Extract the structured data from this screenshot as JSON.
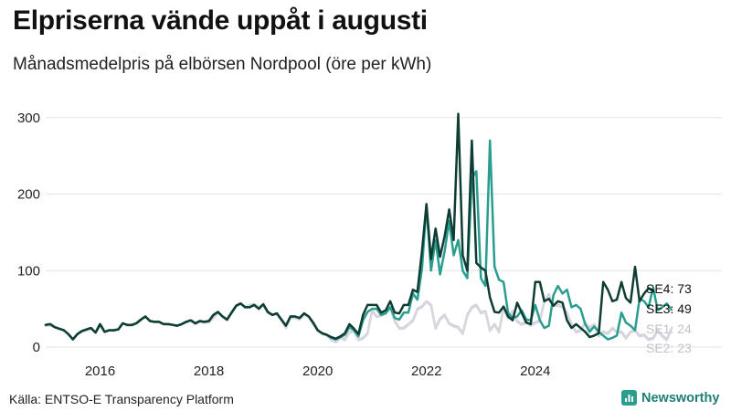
{
  "header": {
    "title": "Elpriserna vände uppåt i augusti",
    "subtitle": "Månadsmedelpris på elbörsen Nordpool (öre per kWh)"
  },
  "footer": {
    "source": "Källa: ENTSO-E Transparency Platform",
    "brand": "Newsworthy"
  },
  "chart_data": {
    "type": "line",
    "title": "Elpriserna vände uppåt i augusti",
    "subtitle": "Månadsmedelpris på elbörsen Nordpool (öre per kWh)",
    "xlabel": "",
    "ylabel": "öre per kWh",
    "x_start": "2015-01",
    "x_end": "2025-08",
    "xlim": [
      2015.0,
      2025.75
    ],
    "ylim": [
      0,
      320
    ],
    "yticks": [
      0,
      100,
      200,
      300
    ],
    "xticks": [
      2016,
      2018,
      2020,
      2022,
      2024
    ],
    "xtick_labels": [
      "2016",
      "2018",
      "2020",
      "2022",
      "2024"
    ],
    "grid": true,
    "series": [
      {
        "name": "SE2",
        "label": "SE2: 23",
        "color": "#c9c6d0",
        "last": 23,
        "values": [
          28,
          28,
          26,
          24,
          22,
          17,
          10,
          17,
          20,
          22,
          24,
          19,
          28,
          20,
          22,
          22,
          23,
          31,
          28,
          28,
          31,
          35,
          40,
          34,
          33,
          33,
          30,
          30,
          29,
          28,
          30,
          33,
          35,
          30,
          33,
          32,
          32,
          38,
          45,
          40,
          35,
          44,
          53,
          57,
          52,
          55,
          56,
          53,
          55,
          44,
          42,
          43,
          35,
          25,
          38,
          38,
          36,
          42,
          40,
          30,
          22,
          18,
          16,
          10,
          7,
          13,
          10,
          20,
          21,
          10,
          12,
          18,
          48,
          40,
          42,
          45,
          52,
          34,
          25,
          25,
          30,
          35,
          50,
          53,
          60,
          55,
          25,
          37,
          42,
          31,
          28,
          26,
          18,
          42,
          52,
          55,
          45,
          47,
          22,
          30,
          20,
          52,
          38,
          47,
          34,
          30,
          33,
          29,
          32,
          35,
          60,
          69,
          55,
          55,
          53,
          45,
          30,
          20,
          22,
          32,
          25,
          30,
          15,
          20,
          18,
          25,
          20,
          20,
          12,
          20,
          22,
          15,
          16,
          10,
          12,
          22,
          15,
          10,
          23
        ]
      },
      {
        "name": "SE1",
        "label": "SE1: 24",
        "color": "#d8d6de",
        "last": 24,
        "values": [
          28,
          28,
          26,
          24,
          22,
          17,
          10,
          17,
          20,
          22,
          24,
          19,
          28,
          20,
          22,
          22,
          23,
          31,
          28,
          28,
          31,
          35,
          40,
          34,
          33,
          33,
          30,
          30,
          29,
          28,
          30,
          33,
          35,
          30,
          33,
          32,
          32,
          38,
          45,
          40,
          35,
          44,
          53,
          57,
          52,
          55,
          56,
          53,
          55,
          44,
          42,
          43,
          35,
          25,
          38,
          38,
          36,
          42,
          40,
          30,
          21,
          17,
          15,
          9,
          6,
          12,
          9,
          19,
          20,
          9,
          11,
          17,
          47,
          39,
          41,
          44,
          51,
          33,
          24,
          24,
          29,
          34,
          49,
          52,
          59,
          54,
          24,
          36,
          41,
          30,
          27,
          25,
          17,
          41,
          51,
          54,
          44,
          46,
          21,
          29,
          19,
          51,
          37,
          46,
          33,
          29,
          32,
          28,
          31,
          34,
          59,
          68,
          54,
          54,
          52,
          44,
          29,
          19,
          21,
          31,
          24,
          29,
          14,
          19,
          17,
          24,
          19,
          19,
          11,
          19,
          21,
          14,
          15,
          9,
          11,
          21,
          14,
          9,
          24
        ]
      },
      {
        "name": "SE3",
        "label": "SE3: 49",
        "color": "#2a9d8f",
        "last": 49,
        "values": [
          29,
          30,
          26,
          24,
          22,
          17,
          10,
          17,
          21,
          23,
          25,
          19,
          30,
          20,
          22,
          22,
          23,
          31,
          29,
          29,
          31,
          36,
          40,
          34,
          33,
          33,
          30,
          30,
          29,
          28,
          30,
          33,
          35,
          31,
          34,
          33,
          34,
          42,
          46,
          40,
          36,
          45,
          54,
          57,
          52,
          52,
          55,
          50,
          56,
          46,
          42,
          44,
          36,
          28,
          40,
          40,
          38,
          44,
          40,
          32,
          22,
          18,
          16,
          12,
          10,
          13,
          16,
          26,
          22,
          14,
          35,
          46,
          50,
          50,
          42,
          44,
          52,
          38,
          36,
          45,
          45,
          70,
          62,
          102,
          185,
          100,
          140,
          95,
          125,
          165,
          120,
          140,
          100,
          90,
          220,
          230,
          90,
          80,
          270,
          105,
          88,
          85,
          45,
          38,
          40,
          48,
          36,
          35,
          55,
          35,
          25,
          28,
          68,
          80,
          70,
          75,
          52,
          55,
          50,
          30,
          20,
          27,
          20,
          15,
          10,
          12,
          15,
          45,
          32,
          28,
          22,
          63,
          60,
          52,
          78,
          48,
          52,
          57,
          49
        ]
      },
      {
        "name": "SE4",
        "label": "SE4: 73",
        "color": "#0f3d34",
        "last": 73,
        "values": [
          29,
          30,
          26,
          24,
          22,
          17,
          10,
          17,
          21,
          23,
          25,
          19,
          30,
          20,
          22,
          22,
          23,
          31,
          29,
          29,
          31,
          36,
          40,
          34,
          33,
          33,
          30,
          30,
          29,
          28,
          30,
          33,
          35,
          31,
          34,
          33,
          34,
          42,
          46,
          40,
          36,
          45,
          54,
          57,
          52,
          52,
          55,
          50,
          56,
          46,
          42,
          44,
          36,
          28,
          40,
          40,
          38,
          44,
          40,
          32,
          22,
          18,
          16,
          13,
          11,
          14,
          18,
          30,
          24,
          17,
          42,
          55,
          55,
          55,
          45,
          48,
          60,
          45,
          44,
          55,
          55,
          75,
          72,
          125,
          187,
          115,
          155,
          118,
          145,
          180,
          140,
          305,
          120,
          100,
          270,
          110,
          104,
          100,
          65,
          46,
          45,
          53,
          40,
          35,
          58,
          45,
          32,
          30,
          85,
          85,
          60,
          63,
          54,
          60,
          58,
          35,
          25,
          30,
          25,
          20,
          13,
          15,
          18,
          85,
          75,
          60,
          62,
          85,
          64,
          58,
          105,
          60,
          70,
          77,
          73
        ]
      }
    ]
  }
}
